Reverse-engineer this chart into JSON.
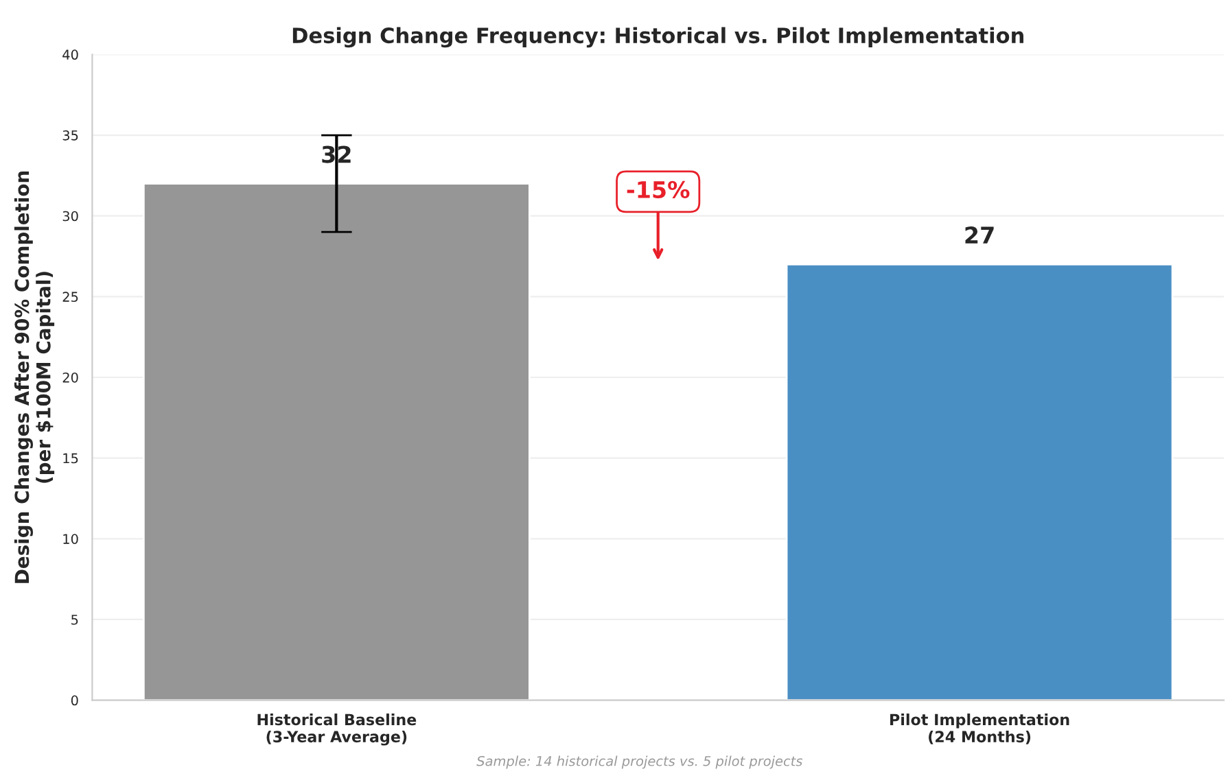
{
  "chart_data": {
    "type": "bar",
    "title": "Design Change Frequency: Historical vs. Pilot Implementation",
    "ylabel": "Design Changes After 90% Completion\n(per $100M Capital)",
    "categories": [
      "Historical Baseline\n(3-Year Average)",
      "Pilot Implementation\n(24 Months)"
    ],
    "values": [
      32,
      27
    ],
    "colors": [
      "#969696",
      "#4a8fc4"
    ],
    "errors": [
      [
        29,
        35
      ],
      null
    ],
    "data_labels": true,
    "ylim": [
      0,
      40
    ],
    "yticks": [
      0,
      5,
      10,
      15,
      20,
      25,
      30,
      35,
      40
    ],
    "grid": "y",
    "annotations": [
      "-15%",
      "Sample: 14 historical projects vs. 5 pilot projects"
    ]
  }
}
